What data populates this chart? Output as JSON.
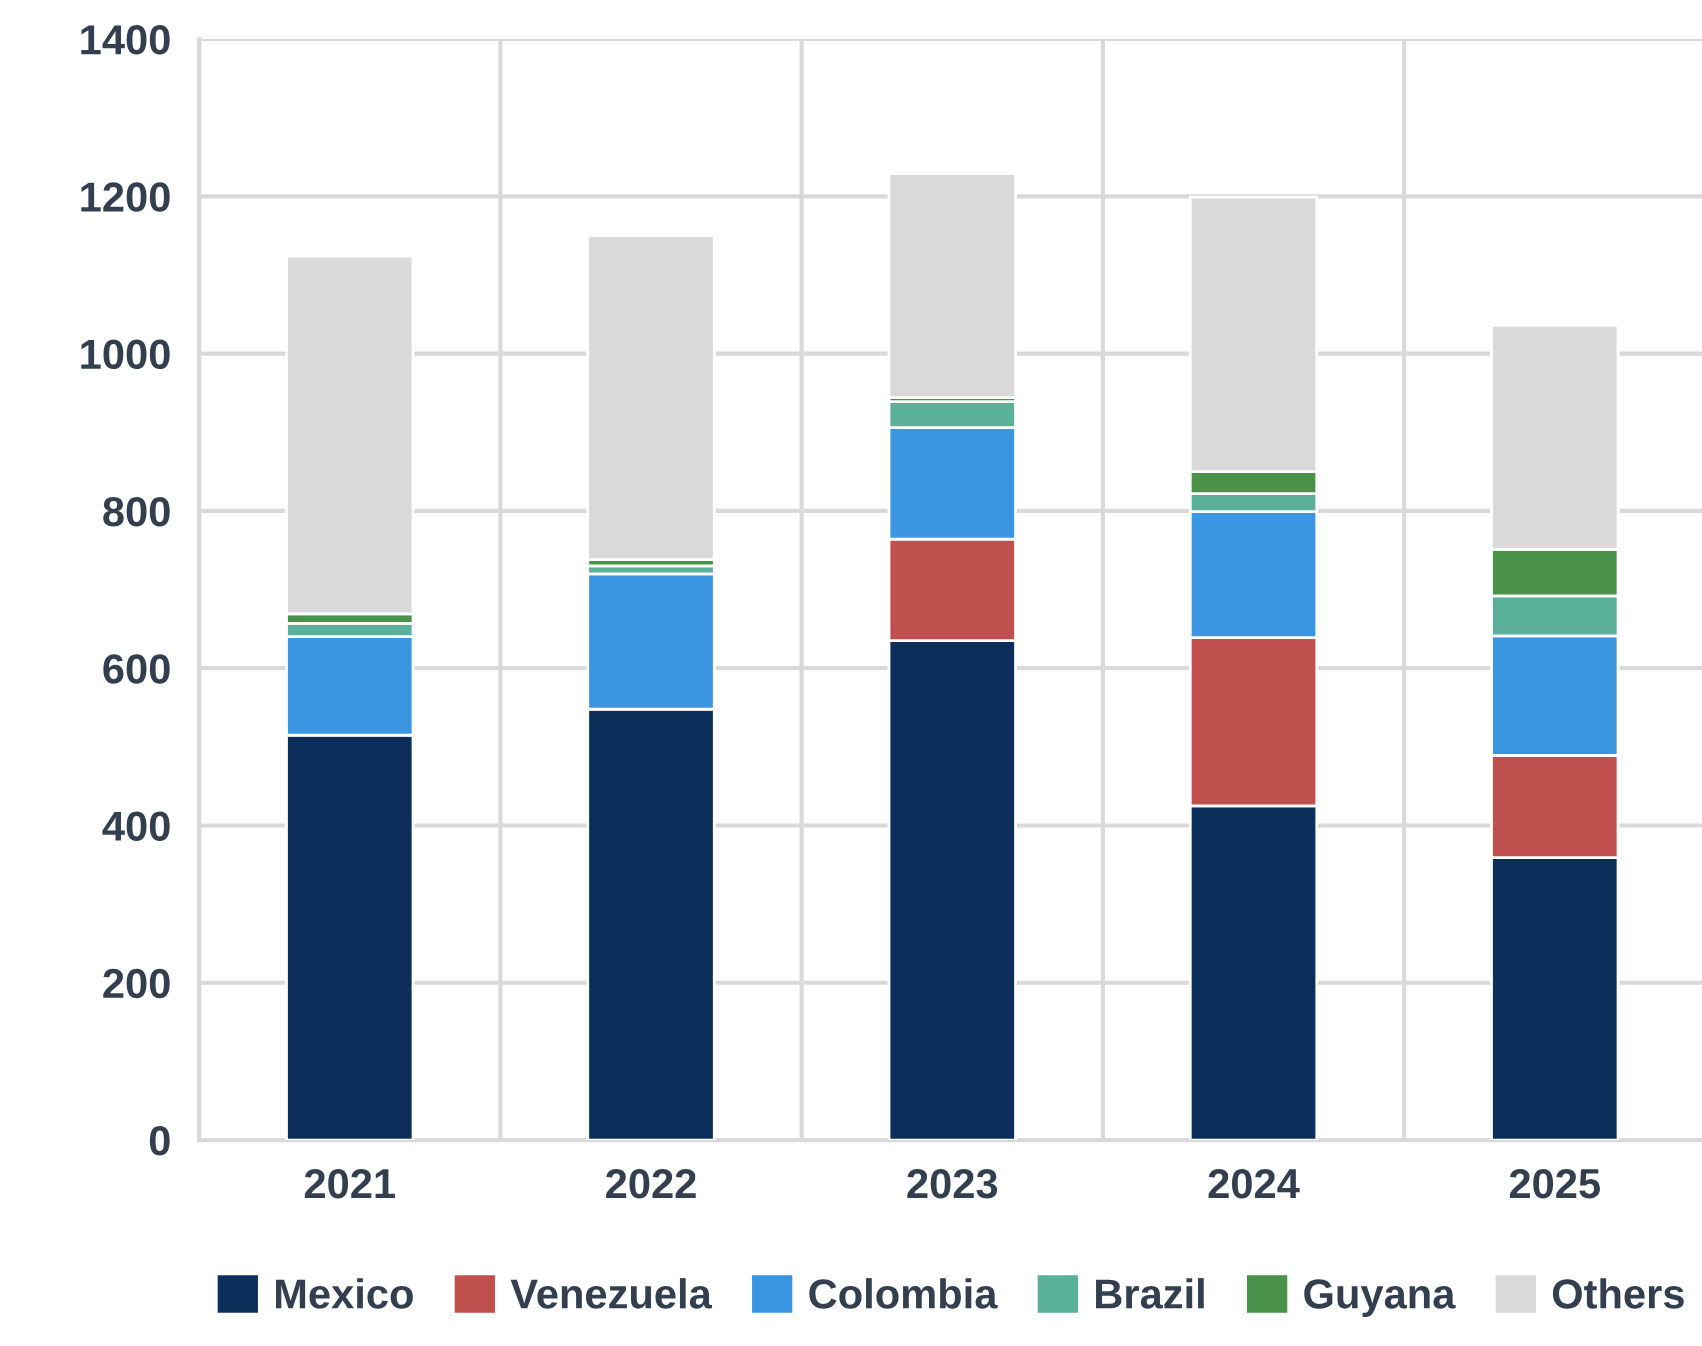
{
  "chart_data": {
    "type": "bar",
    "stacked": true,
    "categories": [
      "2021",
      "2022",
      "2023",
      "2024",
      "2025"
    ],
    "series": [
      {
        "name": "Mexico",
        "color": "#0b2f5a",
        "values": [
          515,
          548,
          635,
          425,
          359
        ]
      },
      {
        "name": "Venezuela",
        "color": "#c0504d",
        "values": [
          0,
          0,
          129,
          214,
          130
        ]
      },
      {
        "name": "Colombia",
        "color": "#3a96e0",
        "values": [
          125,
          172,
          142,
          160,
          152
        ]
      },
      {
        "name": "Brazil",
        "color": "#5bb09a",
        "values": [
          17,
          10,
          33,
          23,
          51
        ]
      },
      {
        "name": "Guyana",
        "color": "#4a914a",
        "values": [
          12,
          8,
          5,
          28,
          59
        ]
      },
      {
        "name": "Others",
        "color": "#d9d9d9",
        "values": [
          455,
          412,
          285,
          349,
          285
        ]
      }
    ],
    "ylim": [
      0,
      1400
    ],
    "yticks": [
      0,
      200,
      400,
      600,
      800,
      1000,
      1200,
      1400
    ],
    "grid": true,
    "legend": "bottom"
  }
}
